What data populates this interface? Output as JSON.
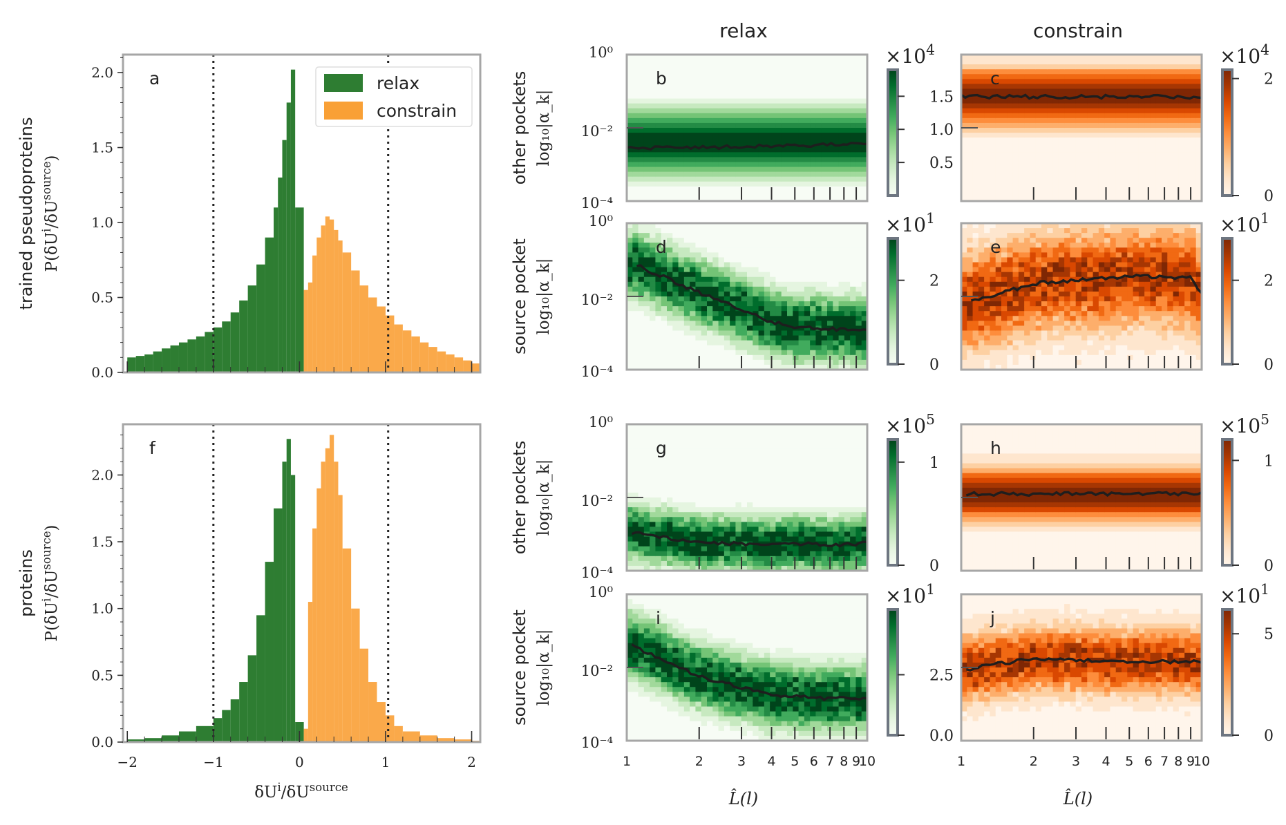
{
  "figure": {
    "column_titles": [
      "relax",
      "constrain"
    ],
    "x_axis_label_left": "δU^i/δU^source",
    "x_axis_label_right": "L̂(l)"
  },
  "chart_data": [
    {
      "panel": "a",
      "type": "bar",
      "title": "",
      "ylabel_top": "trained pseudoproteins",
      "ylabel_bottom": "P(δU^i/δU^source)",
      "xlim": [
        -2.05,
        2.1
      ],
      "ylim": [
        0,
        2.12
      ],
      "yticks": [
        "0.0",
        "0.5",
        "1.0",
        "1.5",
        "2.0"
      ],
      "xticks": [
        "−2",
        "−1",
        "0",
        "1",
        "2"
      ],
      "legend": [
        "relax",
        "constrain"
      ],
      "legend_location": "top-right",
      "vlines": [
        -1,
        1.03
      ],
      "series": [
        {
          "name": "relax",
          "color": "#2e7d32",
          "x": [
            -2.0,
            -1.9,
            -1.8,
            -1.7,
            -1.6,
            -1.5,
            -1.4,
            -1.3,
            -1.2,
            -1.1,
            -1.0,
            -0.9,
            -0.8,
            -0.7,
            -0.6,
            -0.5,
            -0.4,
            -0.3,
            -0.25,
            -0.2,
            -0.15,
            -0.1,
            -0.05
          ],
          "values": [
            0.1,
            0.11,
            0.12,
            0.14,
            0.16,
            0.18,
            0.2,
            0.22,
            0.24,
            0.27,
            0.3,
            0.34,
            0.4,
            0.48,
            0.58,
            0.72,
            0.9,
            1.1,
            1.3,
            1.55,
            1.8,
            2.02,
            1.1
          ]
        },
        {
          "name": "constrain",
          "color": "#f9a036",
          "x": [
            0.05,
            0.1,
            0.15,
            0.2,
            0.25,
            0.3,
            0.35,
            0.4,
            0.45,
            0.5,
            0.6,
            0.7,
            0.8,
            0.9,
            1.0,
            1.1,
            1.2,
            1.3,
            1.4,
            1.5,
            1.6,
            1.7,
            1.8,
            1.9,
            2.0
          ],
          "values": [
            0.55,
            0.6,
            0.78,
            0.9,
            0.98,
            1.04,
            1.02,
            0.95,
            0.88,
            0.8,
            0.68,
            0.58,
            0.5,
            0.44,
            0.38,
            0.32,
            0.28,
            0.24,
            0.2,
            0.17,
            0.14,
            0.12,
            0.1,
            0.08,
            0.06
          ]
        }
      ]
    },
    {
      "panel": "f",
      "type": "bar",
      "title": "",
      "ylabel_top": "proteins",
      "ylabel_bottom": "P(δU^i/δU^source)",
      "xlim": [
        -2.05,
        2.1
      ],
      "ylim": [
        0,
        2.38
      ],
      "yticks": [
        "0.0",
        "0.5",
        "1.0",
        "1.5",
        "2.0"
      ],
      "xticks": [
        "−2",
        "−1",
        "0",
        "1",
        "2"
      ],
      "vlines": [
        -1,
        1.03
      ],
      "series": [
        {
          "name": "relax",
          "color": "#2e7d32",
          "x": [
            -2.0,
            -1.8,
            -1.6,
            -1.4,
            -1.2,
            -1.0,
            -0.9,
            -0.8,
            -0.7,
            -0.6,
            -0.5,
            -0.4,
            -0.3,
            -0.2,
            -0.15,
            -0.1,
            -0.05
          ],
          "values": [
            0.02,
            0.03,
            0.05,
            0.08,
            0.12,
            0.18,
            0.24,
            0.32,
            0.45,
            0.65,
            0.95,
            1.35,
            1.75,
            2.1,
            2.27,
            2.0,
            0.15
          ]
        },
        {
          "name": "constrain",
          "color": "#f9a036",
          "x": [
            0.05,
            0.1,
            0.15,
            0.2,
            0.25,
            0.3,
            0.35,
            0.4,
            0.45,
            0.5,
            0.6,
            0.7,
            0.8,
            0.9,
            1.0,
            1.1,
            1.2,
            1.4,
            1.6,
            1.8,
            2.0
          ],
          "values": [
            0.1,
            1.05,
            1.6,
            1.9,
            2.1,
            2.2,
            2.3,
            2.1,
            1.85,
            1.45,
            1.0,
            0.7,
            0.45,
            0.3,
            0.2,
            0.12,
            0.08,
            0.05,
            0.03,
            0.02,
            0.01
          ]
        }
      ]
    },
    {
      "panel": "b",
      "type": "heatmap",
      "scheme": "green",
      "row": "other pockets",
      "column": "relax",
      "xlim": [
        1,
        10
      ],
      "ylim": [
        -4,
        0
      ],
      "line_log10_alpha": [
        -2.55,
        -2.55,
        -2.5,
        -2.5,
        -2.48,
        -2.48,
        -2.45,
        -2.44,
        -2.42,
        -2.42
      ],
      "line_x": [
        1,
        2,
        3,
        4,
        5,
        6,
        7,
        8,
        9,
        10
      ],
      "band_center": -2.4,
      "band_width": 0.6,
      "colorbar_exponent": "×10^4",
      "colorbar_ticks": [
        "0.5",
        "1.0",
        "1.5"
      ],
      "colorbar_tick_values": [
        0.5,
        1.0,
        1.5
      ],
      "colorbar_range": [
        0,
        1.9
      ]
    },
    {
      "panel": "c",
      "type": "heatmap",
      "scheme": "orange",
      "row": "other pockets",
      "column": "constrain",
      "xlim": [
        1,
        10
      ],
      "ylim": [
        -4,
        0
      ],
      "line_log10_alpha": [
        -1.15,
        -1.15,
        -1.15,
        -1.15,
        -1.15,
        -1.15,
        -1.15,
        -1.15,
        -1.15,
        -1.15
      ],
      "line_x": [
        1,
        2,
        3,
        4,
        5,
        6,
        7,
        8,
        9,
        10
      ],
      "band_center": -1.15,
      "band_width": 0.55,
      "colorbar_exponent": "×10^4",
      "colorbar_ticks": [
        "0",
        "2"
      ],
      "colorbar_tick_values": [
        0,
        2
      ],
      "colorbar_range": [
        0,
        2.15
      ]
    },
    {
      "panel": "d",
      "type": "heatmap",
      "scheme": "green",
      "row": "source pocket",
      "column": "relax",
      "xlim": [
        1,
        10
      ],
      "ylim": [
        -4,
        0
      ],
      "line_log10_alpha": [
        -1.15,
        -1.9,
        -2.35,
        -2.7,
        -2.85,
        -2.85,
        -2.9,
        -2.9,
        -2.9,
        -2.95
      ],
      "line_x": [
        1.1,
        2,
        3,
        4,
        5,
        6,
        7,
        8,
        9,
        10
      ],
      "band_center": null,
      "band_width": 0.6,
      "colorbar_exponent": "×10^1",
      "colorbar_ticks": [
        "0",
        "2"
      ],
      "colorbar_tick_values": [
        0,
        2
      ],
      "colorbar_range": [
        0,
        3.0
      ]
    },
    {
      "panel": "e",
      "type": "heatmap",
      "scheme": "orange",
      "row": "source pocket",
      "column": "constrain",
      "xlim": [
        1,
        10
      ],
      "ylim": [
        -4,
        0
      ],
      "line_log10_alpha": [
        -2.15,
        -1.65,
        -1.55,
        -1.5,
        -1.45,
        -1.45,
        -1.48,
        -1.5,
        -1.5,
        -1.9
      ],
      "line_x": [
        1.1,
        2,
        3,
        4,
        5,
        6,
        7,
        8,
        9,
        10
      ],
      "band_center": null,
      "band_width": 0.9,
      "colorbar_exponent": "×10^1",
      "colorbar_ticks": [
        "0",
        "2"
      ],
      "colorbar_tick_values": [
        0,
        2
      ],
      "colorbar_range": [
        0,
        3.0
      ]
    },
    {
      "panel": "g",
      "type": "heatmap",
      "scheme": "green",
      "row": "other pockets",
      "column": "relax",
      "xlim": [
        1,
        10
      ],
      "ylim": [
        -4,
        0
      ],
      "line_log10_alpha": [
        -2.95,
        -3.25,
        -3.25,
        -3.3,
        -3.25,
        -3.28,
        -3.3,
        -3.3,
        -3.28,
        -3.2
      ],
      "line_x": [
        1.05,
        2,
        3,
        4,
        5,
        6,
        7,
        8,
        9,
        10
      ],
      "band_center": null,
      "band_width": 0.5,
      "colorbar_exponent": "×10^5",
      "colorbar_ticks": [
        "0",
        "1"
      ],
      "colorbar_tick_values": [
        0,
        1
      ],
      "colorbar_range": [
        0,
        1.22
      ]
    },
    {
      "panel": "h",
      "type": "heatmap",
      "scheme": "orange",
      "row": "other pockets",
      "column": "constrain",
      "xlim": [
        1,
        10
      ],
      "ylim": [
        -4,
        0
      ],
      "line_log10_alpha": [
        -1.9,
        -1.9,
        -1.9,
        -1.9,
        -1.9,
        -1.9,
        -1.9,
        -1.9,
        -1.9,
        -1.9
      ],
      "line_x": [
        1.05,
        2,
        3,
        4,
        5,
        6,
        7,
        8,
        9,
        10
      ],
      "band_center": -1.9,
      "band_width": 0.5,
      "colorbar_exponent": "×10^5",
      "colorbar_ticks": [
        "0",
        "1"
      ],
      "colorbar_tick_values": [
        0,
        1
      ],
      "colorbar_range": [
        0,
        1.2
      ]
    },
    {
      "panel": "i",
      "type": "heatmap",
      "scheme": "green",
      "row": "source pocket",
      "column": "relax",
      "xlim": [
        1,
        10
      ],
      "ylim": [
        -4,
        0
      ],
      "line_log10_alpha": [
        -1.4,
        -2.25,
        -2.55,
        -2.75,
        -2.8,
        -2.82,
        -2.85,
        -2.85,
        -2.85,
        -2.85
      ],
      "line_x": [
        1.05,
        2,
        3,
        4,
        5,
        6,
        7,
        8,
        9,
        10
      ],
      "band_center": null,
      "band_width": 0.6,
      "colorbar_exponent": "×10^1",
      "colorbar_ticks": [
        "0.0",
        "2.5"
      ],
      "colorbar_tick_values": [
        0,
        2.5
      ],
      "colorbar_range": [
        0,
        5.2
      ]
    },
    {
      "panel": "j",
      "type": "heatmap",
      "scheme": "orange",
      "row": "source pocket",
      "column": "constrain",
      "xlim": [
        1,
        10
      ],
      "ylim": [
        -4,
        0
      ],
      "line_log10_alpha": [
        -2.05,
        -1.75,
        -1.8,
        -1.82,
        -1.82,
        -1.83,
        -1.83,
        -1.85,
        -1.85,
        -1.85
      ],
      "line_x": [
        1.05,
        2,
        3,
        4,
        5,
        6,
        7,
        8,
        9,
        10
      ],
      "band_center": null,
      "band_width": 0.6,
      "colorbar_exponent": "×10^1",
      "colorbar_ticks": [
        "0",
        "5"
      ],
      "colorbar_tick_values": [
        0,
        5
      ],
      "colorbar_range": [
        0,
        6.2
      ]
    }
  ],
  "heatmap_axes": {
    "ylabel_other_top": "other pockets",
    "ylabel_source_top": "source pocket",
    "ylabel_bottom": "log₁₀|α_k|",
    "ytick_top": "10⁰",
    "ytick_mid": "10⁻²",
    "ytick_bot": "10⁻⁴",
    "xticks": [
      "1",
      "2",
      "3",
      "4",
      "5",
      "6",
      "7",
      "8",
      "9",
      "10"
    ]
  }
}
